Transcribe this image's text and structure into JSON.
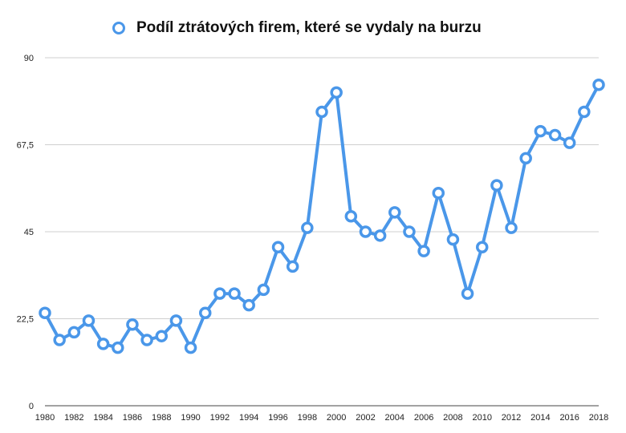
{
  "chart_data": {
    "type": "line",
    "title": "Podíl ztrátových firem, které se vydaly na burzu",
    "legend_position": "top-center",
    "grid": true,
    "xlabel": "",
    "ylabel": "",
    "ylim": [
      0,
      90
    ],
    "yticks": [
      "0",
      "22,5",
      "45",
      "67,5",
      "90"
    ],
    "ytick_values": [
      0,
      22.5,
      45,
      67.5,
      90
    ],
    "xlim": [
      1980,
      2018
    ],
    "xticks": [
      "1980",
      "1982",
      "1984",
      "1986",
      "1988",
      "1990",
      "1992",
      "1994",
      "1996",
      "1998",
      "2000",
      "2002",
      "2004",
      "2006",
      "2008",
      "2010",
      "2012",
      "2014",
      "2016",
      "2018"
    ],
    "xtick_values": [
      1980,
      1982,
      1984,
      1986,
      1988,
      1990,
      1992,
      1994,
      1996,
      1998,
      2000,
      2002,
      2004,
      2006,
      2008,
      2010,
      2012,
      2014,
      2016,
      2018
    ],
    "series": [
      {
        "name": "Podíl ztrátových firem, které se vydaly na burzu",
        "color": "#4a97e9",
        "x": [
          1980,
          1981,
          1982,
          1983,
          1984,
          1985,
          1986,
          1987,
          1988,
          1989,
          1990,
          1991,
          1992,
          1993,
          1994,
          1995,
          1996,
          1997,
          1998,
          1999,
          2000,
          2001,
          2002,
          2003,
          2004,
          2005,
          2006,
          2007,
          2008,
          2009,
          2010,
          2011,
          2012,
          2013,
          2014,
          2015,
          2016,
          2017,
          2018
        ],
        "values": [
          24,
          17,
          19,
          22,
          16,
          15,
          21,
          17,
          18,
          22,
          15,
          24,
          29,
          29,
          26,
          30,
          41,
          36,
          46,
          76,
          81,
          49,
          45,
          44,
          50,
          45,
          40,
          55,
          43,
          29,
          41,
          57,
          46,
          64,
          71,
          70,
          68,
          76,
          83
        ]
      }
    ]
  }
}
